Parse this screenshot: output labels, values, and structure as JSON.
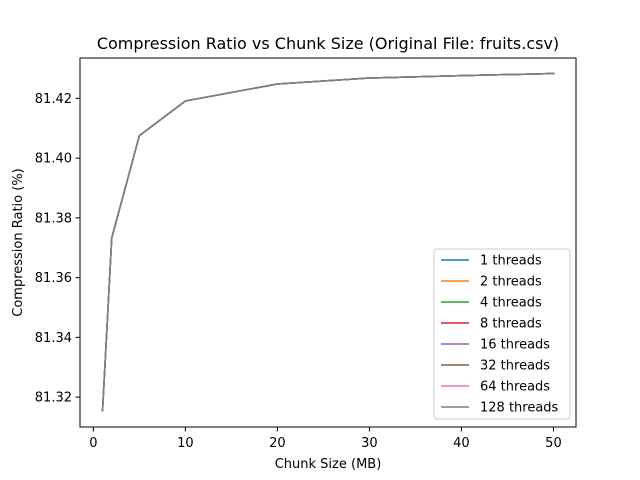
{
  "chart_data": {
    "type": "line",
    "title": "Compression Ratio vs Chunk Size (Original File: fruits.csv)",
    "xlabel": "Chunk Size (MB)",
    "ylabel": "Compression Ratio (%)",
    "xlim": [
      -1.45,
      52.45
    ],
    "ylim": [
      81.31,
      81.4335
    ],
    "xticks": [
      0,
      10,
      20,
      30,
      40,
      50
    ],
    "yticks": [
      81.32,
      81.34,
      81.36,
      81.38,
      81.4,
      81.42
    ],
    "xtick_labels": [
      "0",
      "10",
      "20",
      "30",
      "40",
      "50"
    ],
    "ytick_labels": [
      "81.32",
      "81.34",
      "81.36",
      "81.38",
      "81.40",
      "81.42"
    ],
    "grid": false,
    "legend_position": "lower right",
    "x": [
      1,
      2,
      5,
      10,
      20,
      30,
      40,
      50
    ],
    "series": [
      {
        "name": "1 threads",
        "color": "#1f77b4",
        "values": [
          81.3155,
          81.3733,
          81.4075,
          81.4191,
          81.4248,
          81.4268,
          81.4276,
          81.4283
        ]
      },
      {
        "name": "2 threads",
        "color": "#ff7f0e",
        "values": [
          81.3155,
          81.3733,
          81.4075,
          81.4191,
          81.4248,
          81.4268,
          81.4276,
          81.4283
        ]
      },
      {
        "name": "4 threads",
        "color": "#2ca02c",
        "values": [
          81.3155,
          81.3733,
          81.4075,
          81.4191,
          81.4248,
          81.4268,
          81.4276,
          81.4283
        ]
      },
      {
        "name": "8 threads",
        "color": "#d62728",
        "values": [
          81.3155,
          81.3733,
          81.4075,
          81.4191,
          81.4248,
          81.4268,
          81.4276,
          81.4283
        ]
      },
      {
        "name": "16 threads",
        "color": "#9467bd",
        "values": [
          81.3155,
          81.3733,
          81.4075,
          81.4191,
          81.4248,
          81.4268,
          81.4276,
          81.4283
        ]
      },
      {
        "name": "32 threads",
        "color": "#8c564b",
        "values": [
          81.3155,
          81.3733,
          81.4075,
          81.4191,
          81.4248,
          81.4268,
          81.4276,
          81.4283
        ]
      },
      {
        "name": "64 threads",
        "color": "#e377c2",
        "values": [
          81.3155,
          81.3733,
          81.4075,
          81.4191,
          81.4248,
          81.4268,
          81.4276,
          81.4283
        ]
      },
      {
        "name": "128 threads",
        "color": "#7f7f7f",
        "values": [
          81.3155,
          81.3733,
          81.4075,
          81.4191,
          81.4248,
          81.4268,
          81.4276,
          81.4283
        ]
      }
    ]
  }
}
